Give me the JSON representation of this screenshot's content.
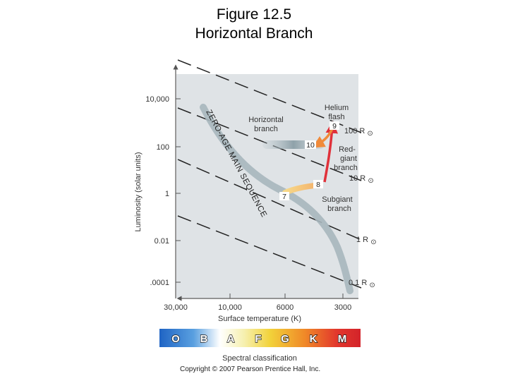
{
  "title_line1": "Figure 12.5",
  "title_line2": "Horizontal Branch",
  "axes": {
    "ylabel": "Luminosity (solar units)",
    "xlabel": "Surface temperature (K)",
    "y_ticks": [
      "10,000",
      "100",
      "1",
      "0.01",
      ".0001"
    ],
    "x_ticks": [
      "30,000",
      "10,000",
      "6000",
      "3000"
    ]
  },
  "radius_labels": [
    {
      "num": "100 R",
      "sym": "⊙"
    },
    {
      "num": "10 R",
      "sym": "⊙"
    },
    {
      "num": "1 R",
      "sym": "⊙"
    },
    {
      "num": "0.1 R",
      "sym": "⊙"
    }
  ],
  "labels": {
    "zams": "ZERO-AGE MAIN SEQUENCE",
    "horizontal_branch": [
      "Horizontal",
      "branch"
    ],
    "helium_flash": [
      "Helium",
      "flash"
    ],
    "red_giant": [
      "Red-",
      "giant",
      "branch"
    ],
    "subgiant": [
      "Subgiant",
      "branch"
    ]
  },
  "stages": [
    "7",
    "8",
    "9",
    "10"
  ],
  "spectral": {
    "classes": [
      "O",
      "B",
      "A",
      "F",
      "G",
      "K",
      "M"
    ],
    "caption": "Spectral classification"
  },
  "copyright": "Copyright © 2007 Pearson Prentice Hall, Inc.",
  "colors": {
    "plot_bg": "#dfe3e6",
    "track_red": "#e0313a",
    "track_orange": "#f08a3a",
    "main_sequence": "#a7b6bc"
  }
}
